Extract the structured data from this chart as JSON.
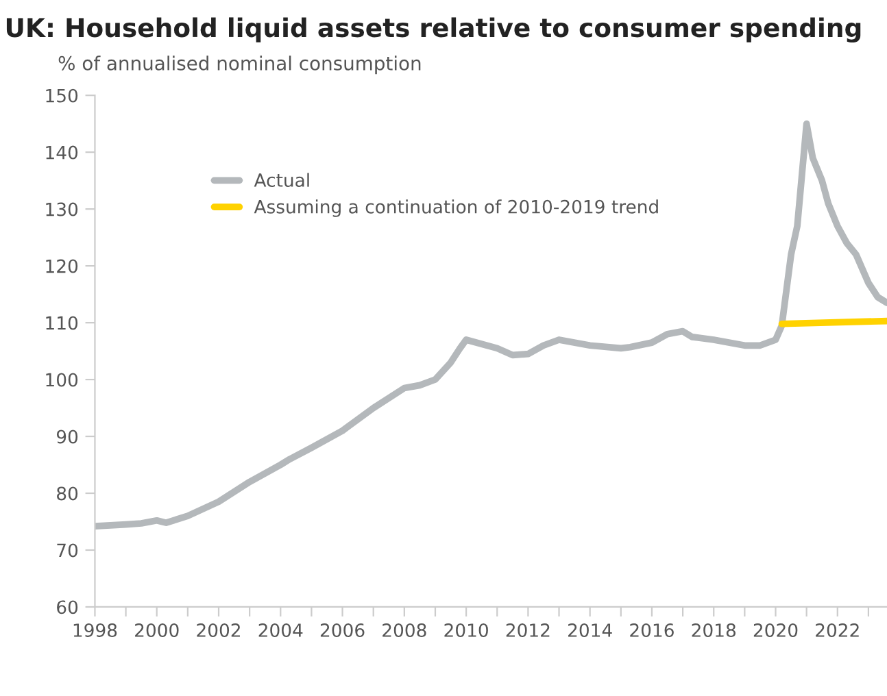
{
  "chart_data": {
    "type": "line",
    "title": "UK: Household liquid assets relative to consumer spending",
    "ylabel": "% of annualised nominal consumption",
    "xlim": [
      1998,
      2023.6
    ],
    "ylim": [
      60,
      150
    ],
    "yticks": [
      60,
      70,
      80,
      90,
      100,
      110,
      120,
      130,
      140,
      150
    ],
    "xticks": [
      1998,
      {
        "value": 1999,
        "label": null
      },
      2000,
      {
        "value": 2001,
        "label": null
      },
      2002,
      {
        "value": 2003,
        "label": null
      },
      2004,
      {
        "value": 2005,
        "label": null
      },
      2006,
      {
        "value": 2007,
        "label": null
      },
      2008,
      {
        "value": 2009,
        "label": null
      },
      2010,
      {
        "value": 2011,
        "label": null
      },
      2012,
      {
        "value": 2013,
        "label": null
      },
      2014,
      {
        "value": 2015,
        "label": null
      },
      2016,
      {
        "value": 2017,
        "label": null
      },
      2018,
      {
        "value": 2019,
        "label": null
      },
      2020,
      {
        "value": 2021,
        "label": null
      },
      2022,
      {
        "value": 2023,
        "label": null
      }
    ],
    "grid": false,
    "legend": "top left",
    "marker": "none",
    "line_style": "solid",
    "series": [
      {
        "name": "Actual",
        "color": "#b4b8bb",
        "x": [
          1998,
          1999,
          1999.5,
          2000,
          2000.3,
          2001,
          2002,
          2003,
          2004,
          2004.3,
          2005,
          2006,
          2007,
          2008,
          2008.5,
          2009,
          2009.5,
          2009.8,
          2010,
          2011,
          2011.5,
          2012,
          2012.5,
          2013,
          2014,
          2015,
          2015.3,
          2016,
          2016.5,
          2017,
          2017.3,
          2018,
          2019,
          2019.5,
          2020,
          2020.2,
          2020.5,
          2020.7,
          2021,
          2021.2,
          2021.5,
          2021.7,
          2022,
          2022.3,
          2022.6,
          2023,
          2023.3,
          2023.6
        ],
        "values": [
          74.2,
          74.5,
          74.7,
          75.2,
          74.8,
          76,
          78.5,
          82,
          85,
          86,
          88,
          91,
          95,
          98.5,
          99,
          100,
          103,
          105.5,
          107,
          105.5,
          104.3,
          104.5,
          106,
          107,
          106,
          105.5,
          105.7,
          106.5,
          108,
          108.5,
          107.5,
          107,
          106,
          106,
          107,
          109.5,
          122,
          127,
          145,
          139,
          135,
          131,
          127,
          124,
          122,
          117,
          114.5,
          113.5
        ]
      },
      {
        "name": "Assuming a continuation of 2010-2019 trend",
        "color": "#ffd200",
        "x": [
          2020.2,
          2023.6
        ],
        "values": [
          109.8,
          110.3
        ]
      }
    ]
  }
}
